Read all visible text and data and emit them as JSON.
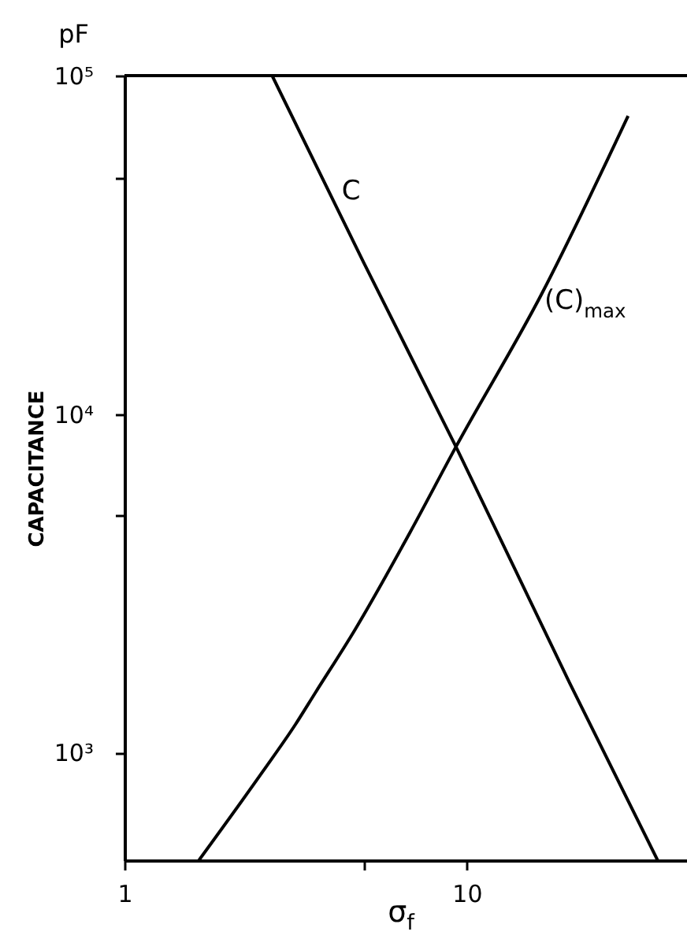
{
  "chart_data": {
    "type": "line",
    "xlabel": "σ$_{f}$",
    "ylabel": "CAPACITANCE",
    "annotations": [
      "pF"
    ],
    "log": "xy",
    "grid": false,
    "xlim": [
      1,
      44
    ],
    "ylim": [
      480,
      100000
    ],
    "xticks": [
      1,
      {
        "value": 5,
        "label": null
      },
      10
    ],
    "yticks": [
      {
        "value": 1000,
        "label": "10³"
      },
      {
        "value": 5000,
        "label": null
      },
      {
        "value": 10000,
        "label": "10⁴"
      },
      {
        "value": 50000,
        "label": null
      },
      {
        "value": 100000,
        "label": "10⁵"
      }
    ],
    "series": [
      {
        "name": "C",
        "color": "#000000",
        "x": [
          2.7,
          5,
          9.3,
          20,
          36.1
        ],
        "values": [
          100000,
          28000,
          8000,
          1600,
          480
        ]
      },
      {
        "name": "(C)$_{max}$",
        "color": "#000000",
        "x": [
          1.65,
          2.54,
          3.16,
          3.61,
          4.71,
          6.83,
          9.3,
          16.5,
          29.6
        ],
        "values": [
          480,
          880,
          1210,
          1500,
          2300,
          4470,
          8000,
          22500,
          76000
        ]
      }
    ]
  }
}
